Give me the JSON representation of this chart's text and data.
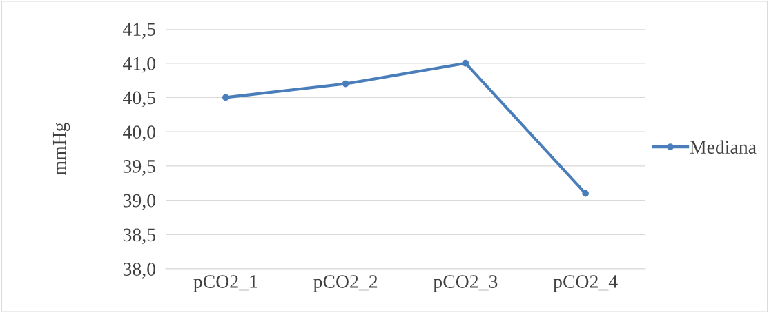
{
  "chart_data": {
    "type": "line",
    "ylabel": "mmHg",
    "categories": [
      "pCO2_1",
      "pCO2_2",
      "pCO2_3",
      "pCO2_4"
    ],
    "series": [
      {
        "name": "Mediana",
        "color": "#4a7ebb",
        "values": [
          40.5,
          40.7,
          41.0,
          39.1
        ]
      }
    ],
    "ylim": [
      38.0,
      41.5
    ],
    "yticks": [
      {
        "value": 38.0,
        "label": "38,0"
      },
      {
        "value": 38.5,
        "label": "38,5"
      },
      {
        "value": 39.0,
        "label": "39,0"
      },
      {
        "value": 39.5,
        "label": "39,5"
      },
      {
        "value": 40.0,
        "label": "40,0"
      },
      {
        "value": 40.5,
        "label": "40,5"
      },
      {
        "value": 41.0,
        "label": "41,0"
      },
      {
        "value": 41.5,
        "label": "41,5"
      }
    ],
    "grid": "y",
    "legend": "right",
    "marker": "circle",
    "line_style": "solid"
  }
}
